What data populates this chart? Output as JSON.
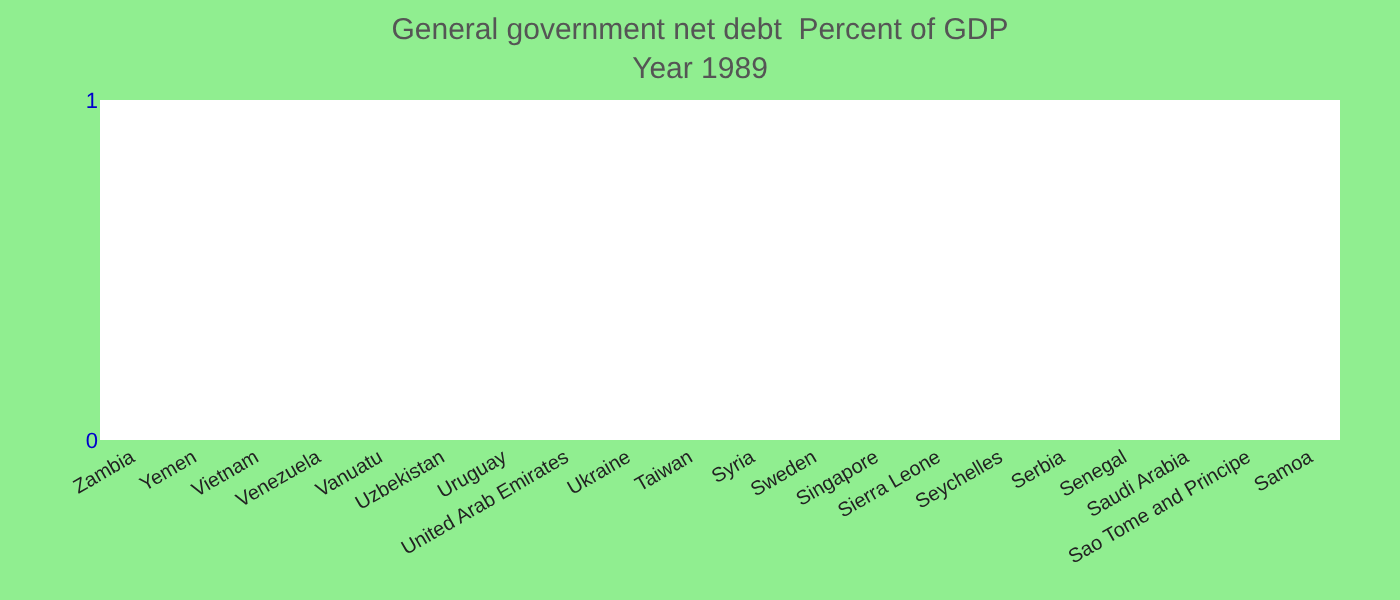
{
  "chart_data": {
    "type": "bar",
    "title": "General government net debt  Percent of GDP",
    "subtitle": "Year 1989",
    "categories": [
      "Zambia",
      "Yemen",
      "Vietnam",
      "Venezuela",
      "Vanuatu",
      "Uzbekistan",
      "Uruguay",
      "United Arab Emirates",
      "Ukraine",
      "Taiwan",
      "Syria",
      "Sweden",
      "Singapore",
      "Sierra Leone",
      "Seychelles",
      "Serbia",
      "Senegal",
      "Saudi Arabia",
      "Sao Tome and Principe",
      "Samoa"
    ],
    "values": [
      0,
      0,
      0,
      0,
      0,
      0,
      0,
      0,
      0,
      0,
      0,
      0,
      0,
      0,
      0,
      0,
      0,
      0,
      0,
      0
    ],
    "ylim": [
      0,
      1
    ],
    "yticks": [
      0,
      1
    ],
    "grid": false
  }
}
